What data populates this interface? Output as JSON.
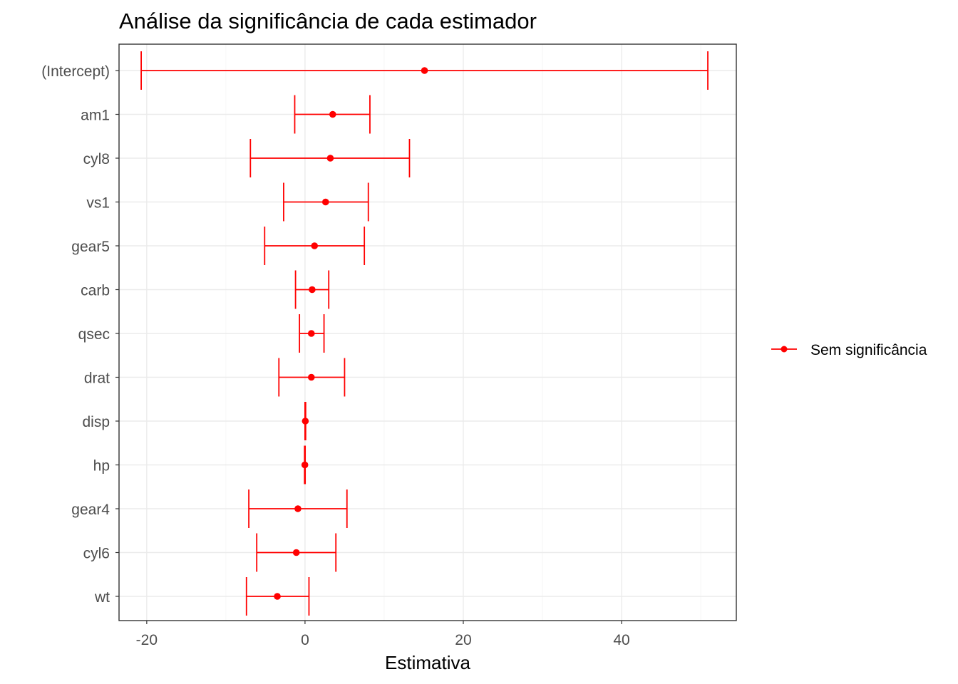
{
  "chart_data": {
    "type": "errorbar",
    "title": "Análise da significância de cada estimador",
    "xlabel": "Estimativa",
    "ylabel": "",
    "xlim": [
      -23.5,
      54.5
    ],
    "xticks": [
      -20,
      0,
      20,
      40
    ],
    "xtick_labels": [
      "-20",
      "0",
      "20",
      "40"
    ],
    "grid": true,
    "legend_position": "right",
    "color": "#ff0000",
    "series": [
      {
        "name": "Sem significância",
        "points": [
          {
            "term": "(Intercept)",
            "estimate": 15.1,
            "low": -20.7,
            "high": 50.9
          },
          {
            "term": "am1",
            "estimate": 3.5,
            "low": -1.3,
            "high": 8.2
          },
          {
            "term": "cyl8",
            "estimate": 3.2,
            "low": -6.9,
            "high": 13.2
          },
          {
            "term": "vs1",
            "estimate": 2.6,
            "low": -2.7,
            "high": 8.0
          },
          {
            "term": "gear5",
            "estimate": 1.2,
            "low": -5.1,
            "high": 7.5
          },
          {
            "term": "carb",
            "estimate": 0.9,
            "low": -1.2,
            "high": 3.0
          },
          {
            "term": "qsec",
            "estimate": 0.8,
            "low": -0.7,
            "high": 2.4
          },
          {
            "term": "drat",
            "estimate": 0.8,
            "low": -3.3,
            "high": 5.0
          },
          {
            "term": "disp",
            "estimate": 0.04,
            "low": 0.0,
            "high": 0.08
          },
          {
            "term": "hp",
            "estimate": -0.02,
            "low": -0.06,
            "high": 0.02
          },
          {
            "term": "gear4",
            "estimate": -0.9,
            "low": -7.1,
            "high": 5.3
          },
          {
            "term": "cyl6",
            "estimate": -1.1,
            "low": -6.1,
            "high": 3.9
          },
          {
            "term": "wt",
            "estimate": -3.5,
            "low": -7.4,
            "high": 0.5
          }
        ]
      }
    ]
  }
}
